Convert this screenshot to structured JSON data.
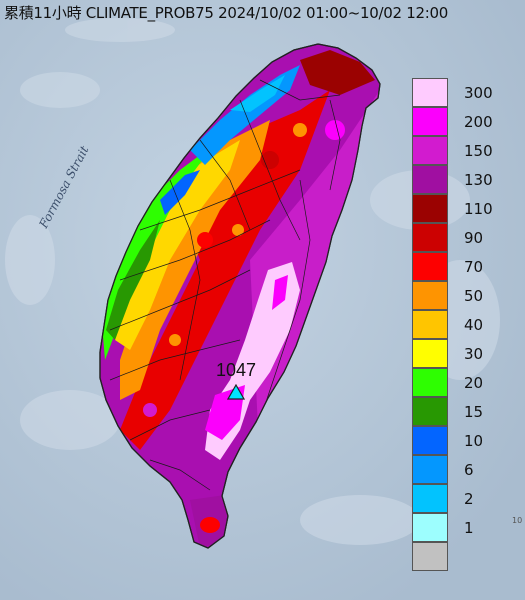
{
  "title": "累積11小時 CLIMATE_PROB75 2024/10/02 01:00~10/02 12:00",
  "map_labels": {
    "strait": "Formosa Strait",
    "max_value": "1047",
    "edge_tag": "10"
  },
  "legend": {
    "items": [
      {
        "label": "300",
        "color": "#fecbfe"
      },
      {
        "label": "200",
        "color": "#fb00fc"
      },
      {
        "label": "150",
        "color": "#d21bcf"
      },
      {
        "label": "130",
        "color": "#a00fa1"
      },
      {
        "label": "110",
        "color": "#9b0201"
      },
      {
        "label": "90",
        "color": "#cc0101"
      },
      {
        "label": "70",
        "color": "#fd0000"
      },
      {
        "label": "50",
        "color": "#fe9401"
      },
      {
        "label": "40",
        "color": "#ffc500"
      },
      {
        "label": "30",
        "color": "#fffe00"
      },
      {
        "label": "20",
        "color": "#2efe01"
      },
      {
        "label": "15",
        "color": "#289802"
      },
      {
        "label": "10",
        "color": "#0365ff"
      },
      {
        "label": "6",
        "color": "#0497fe"
      },
      {
        "label": "2",
        "color": "#02c3fe"
      },
      {
        "label": "1",
        "color": "#9dfefe"
      },
      {
        "label": "",
        "color": "#c1c1c1"
      }
    ]
  },
  "colors": {
    "sea": "#b7c8d9",
    "boundary": "#222222",
    "marker": "#00e5ff"
  }
}
